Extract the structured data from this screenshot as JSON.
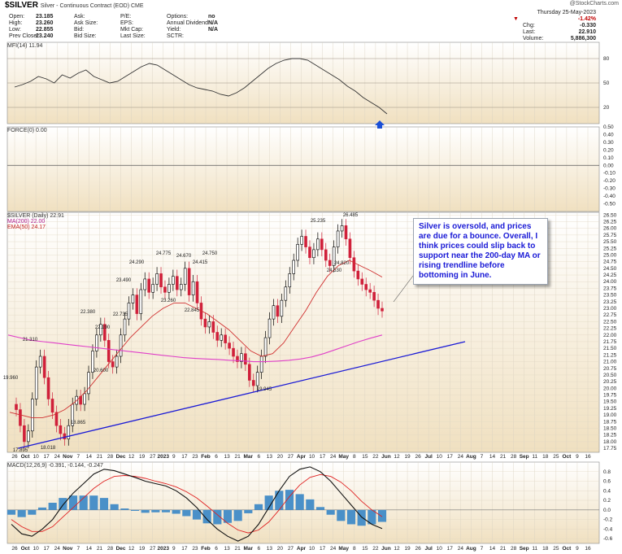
{
  "header": {
    "symbol": "$SILVER",
    "description": "Silver - Continuous Contract (EOD) CME",
    "brand": "@StockCharts.com",
    "date_line": "Thursday   25-May-2023"
  },
  "stats": [
    {
      "label": "Open:",
      "value": "23.185"
    },
    {
      "label": "High:",
      "value": "23.260"
    },
    {
      "label": "Low:",
      "value": "22.855"
    },
    {
      "label": "Prev Close:",
      "value": "23.240"
    },
    {
      "label": "Ask:",
      "value": ""
    },
    {
      "label": "Ask Size:",
      "value": ""
    },
    {
      "label": "Bid:",
      "value": ""
    },
    {
      "label": "Bid Size:",
      "value": ""
    },
    {
      "label": "P/E:",
      "value": ""
    },
    {
      "label": "EPS:",
      "value": ""
    },
    {
      "label": "Mkt Cap:",
      "value": ""
    },
    {
      "label": "Last Size:",
      "value": ""
    },
    {
      "label": "Options:",
      "value": "no"
    },
    {
      "label": "Annual Dividend:",
      "value": "N/A"
    },
    {
      "label": "Yield:",
      "value": "N/A"
    },
    {
      "label": "SCTR:",
      "value": ""
    }
  ],
  "quote": {
    "change_pct": "-1.42%",
    "chg_label": "Chg:",
    "chg_value": "-0.330",
    "last_label": "Last:",
    "last_value": "22.910",
    "volume_label": "Volume:",
    "volume_value": "5,886,300"
  },
  "panels": {
    "mfi_label": "MFI(14) 11.94",
    "force_label": "FORCE(0) 0.00",
    "price_label": "$SILVER (Daily) 22.91",
    "ma200_label": "MA(200) 22.00",
    "ema50_label": "EMA(50) 24.17",
    "macd_label": "MACD(12,26,9) -0.391, -0.144, -0.247"
  },
  "annotation": "Silver is oversold, and prices are due for a bounce. Overall, I think prices could slip back to support near the 200-day MA or rising trendline before bottoming in June.",
  "colors": {
    "up_candle": "#000000",
    "down_candle": "#d0203a",
    "ma200": "#e040c8",
    "ema50": "#d03030",
    "trendline": "#1a1ad6",
    "panel_bg_top": "#ffffff",
    "panel_bg_bottom": "#f0e0c0",
    "macd_hist": "#4a90c8",
    "arrow": "#1a4fd6"
  },
  "chart_data": [
    {
      "type": "line",
      "name": "MFI(14)",
      "ylim": [
        0,
        100
      ],
      "y_ticks": [
        20,
        50,
        80
      ],
      "values": [
        45,
        48,
        52,
        58,
        55,
        50,
        60,
        56,
        62,
        66,
        58,
        54,
        50,
        52,
        58,
        64,
        70,
        74,
        72,
        66,
        60,
        54,
        48,
        44,
        42,
        40,
        36,
        34,
        38,
        44,
        52,
        60,
        68,
        74,
        78,
        80,
        80,
        78,
        72,
        66,
        60,
        54,
        46,
        40,
        32,
        26,
        20,
        12
      ]
    },
    {
      "type": "line",
      "name": "FORCE(0)",
      "ylim": [
        -0.6,
        0.5
      ],
      "y_ticks": [
        "0.50",
        "0.40",
        "0.30",
        "0.20",
        "0.10",
        "0.00",
        "-0.10",
        "-0.20",
        "-0.30",
        "-0.40",
        "-0.50"
      ],
      "zero_line": 0
    },
    {
      "type": "line",
      "name": "$SILVER (Daily)",
      "ylim": [
        17.6,
        26.6
      ],
      "y_ticks": [
        "26.50",
        "26.25",
        "26.00",
        "25.75",
        "25.50",
        "25.25",
        "25.00",
        "24.75",
        "24.50",
        "24.25",
        "24.00",
        "23.75",
        "23.50",
        "23.25",
        "23.00",
        "22.75",
        "22.50",
        "22.25",
        "22.00",
        "21.75",
        "21.50",
        "21.25",
        "21.00",
        "20.75",
        "20.50",
        "20.25",
        "20.00",
        "19.75",
        "19.50",
        "19.25",
        "19.00",
        "18.75",
        "18.50",
        "18.25",
        "18.00",
        "17.75"
      ],
      "close": [
        19.2,
        18.6,
        18.0,
        18.4,
        19.6,
        20.8,
        21.2,
        20.4,
        19.6,
        19.1,
        18.6,
        18.3,
        18.1,
        18.6,
        19.4,
        19.7,
        19.4,
        19.8,
        20.6,
        21.4,
        22.0,
        22.4,
        21.8,
        21.0,
        20.8,
        21.2,
        22.0,
        22.6,
        23.2,
        23.5,
        22.8,
        23.7,
        24.1,
        23.6,
        23.9,
        24.3,
        23.8,
        23.6,
        23.9,
        24.2,
        23.7,
        23.9,
        24.5,
        23.5,
        24.0,
        23.2,
        22.6,
        22.3,
        22.5,
        22.1,
        21.8,
        22.0,
        21.7,
        21.5,
        21.2,
        21.0,
        21.3,
        20.9,
        20.3,
        20.1,
        20.6,
        21.2,
        21.9,
        22.6,
        23.1,
        22.7,
        23.3,
        23.8,
        24.3,
        24.8,
        25.4,
        25.7,
        25.3,
        24.9,
        25.2,
        25.6,
        25.2,
        24.8,
        24.6,
        25.3,
        25.9,
        26.1,
        25.6,
        24.9,
        24.4,
        24.1,
        23.9,
        23.7,
        23.6,
        23.3,
        23.0,
        22.9
      ],
      "ma200": [
        22.0,
        21.9,
        21.8,
        21.75,
        21.7,
        21.65,
        21.6,
        21.55,
        21.5,
        21.45,
        21.4,
        21.35,
        21.3,
        21.25,
        21.2,
        21.15,
        21.12,
        21.1,
        21.08,
        21.05,
        21.03,
        21.0,
        21.0,
        21.02,
        21.05,
        21.1,
        21.18,
        21.3,
        21.45,
        21.6,
        21.75,
        21.88,
        22.0
      ],
      "ema50": [
        19.1,
        19.0,
        18.9,
        18.9,
        19.0,
        19.2,
        19.5,
        19.9,
        20.4,
        20.9,
        21.4,
        21.9,
        22.3,
        22.7,
        23.0,
        23.2,
        23.2,
        23.0,
        22.8,
        22.5,
        22.2,
        21.8,
        21.4,
        21.2,
        21.3,
        21.7,
        22.3,
        22.9,
        23.6,
        24.2,
        24.6,
        24.8,
        24.6,
        24.4,
        24.17
      ],
      "price_labels": [
        {
          "text": "21.310"
        },
        {
          "text": "19.960"
        },
        {
          "text": "17.895"
        },
        {
          "text": "18.018"
        },
        {
          "text": "18.865"
        },
        {
          "text": "22.380"
        },
        {
          "text": "22.190"
        },
        {
          "text": "20.600"
        },
        {
          "text": "23.490"
        },
        {
          "text": "24.290"
        },
        {
          "text": "22.735"
        },
        {
          "text": "24.775"
        },
        {
          "text": "23.260"
        },
        {
          "text": "24.670"
        },
        {
          "text": "24.415"
        },
        {
          "text": "22.845"
        },
        {
          "text": "24.750"
        },
        {
          "text": "19.945"
        },
        {
          "text": "25.235"
        },
        {
          "text": "26.485"
        },
        {
          "text": "24.530"
        },
        {
          "text": "24.820"
        }
      ],
      "trendline": {
        "from": [
          "2022-09-28",
          17.8
        ],
        "to": [
          "2023-09-05",
          21.75
        ]
      }
    },
    {
      "type": "bar",
      "name": "MACD(12,26,9)",
      "ylim": [
        -0.7,
        1.0
      ],
      "y_ticks": [
        "0.8",
        "0.6",
        "0.4",
        "0.2",
        "0.0",
        "-0.2",
        "-0.4",
        "-0.6"
      ],
      "macd": [
        -0.3,
        -0.5,
        -0.55,
        -0.4,
        -0.2,
        0.1,
        0.35,
        0.55,
        0.75,
        0.85,
        0.82,
        0.75,
        0.68,
        0.6,
        0.55,
        0.5,
        0.4,
        0.25,
        0.05,
        -0.2,
        -0.4,
        -0.55,
        -0.65,
        -0.55,
        -0.3,
        0.05,
        0.4,
        0.7,
        0.85,
        0.9,
        0.8,
        0.6,
        0.35,
        0.1,
        -0.15,
        -0.3,
        -0.39
      ],
      "signal": [
        -0.2,
        -0.35,
        -0.45,
        -0.45,
        -0.35,
        -0.15,
        0.05,
        0.25,
        0.45,
        0.6,
        0.7,
        0.72,
        0.7,
        0.66,
        0.6,
        0.55,
        0.48,
        0.38,
        0.25,
        0.08,
        -0.1,
        -0.28,
        -0.42,
        -0.48,
        -0.42,
        -0.25,
        0.0,
        0.28,
        0.52,
        0.68,
        0.74,
        0.7,
        0.58,
        0.4,
        0.18,
        0.0,
        -0.14
      ],
      "histogram": [
        -0.1,
        -0.15,
        -0.1,
        0.05,
        0.15,
        0.25,
        0.3,
        0.3,
        0.3,
        0.25,
        0.12,
        0.03,
        -0.02,
        -0.06,
        -0.05,
        -0.05,
        -0.08,
        -0.13,
        -0.2,
        -0.28,
        -0.3,
        -0.27,
        -0.23,
        -0.07,
        0.12,
        0.3,
        0.4,
        0.42,
        0.33,
        0.22,
        0.06,
        -0.1,
        -0.23,
        -0.3,
        -0.33,
        -0.3,
        -0.25
      ]
    }
  ],
  "x_axis": {
    "labels": [
      "26",
      "Oct",
      "10",
      "17",
      "24",
      "Nov",
      "7",
      "14",
      "21",
      "28",
      "Dec",
      "12",
      "19",
      "27",
      "2023",
      "9",
      "17",
      "23",
      "Feb",
      "6",
      "13",
      "21",
      "Mar",
      "6",
      "13",
      "20",
      "27",
      "Apr",
      "10",
      "17",
      "24",
      "May",
      "8",
      "15",
      "22",
      "Jun",
      "12",
      "19",
      "26",
      "Jul",
      "10",
      "17",
      "24",
      "Aug",
      "7",
      "14",
      "21",
      "28",
      "Sep",
      "11",
      "18",
      "25",
      "Oct",
      "9",
      "16"
    ],
    "bold": [
      "Oct",
      "Nov",
      "Dec",
      "2023",
      "Feb",
      "Mar",
      "Apr",
      "May",
      "Jun",
      "Jul",
      "Aug",
      "Sep",
      "Oct"
    ]
  }
}
